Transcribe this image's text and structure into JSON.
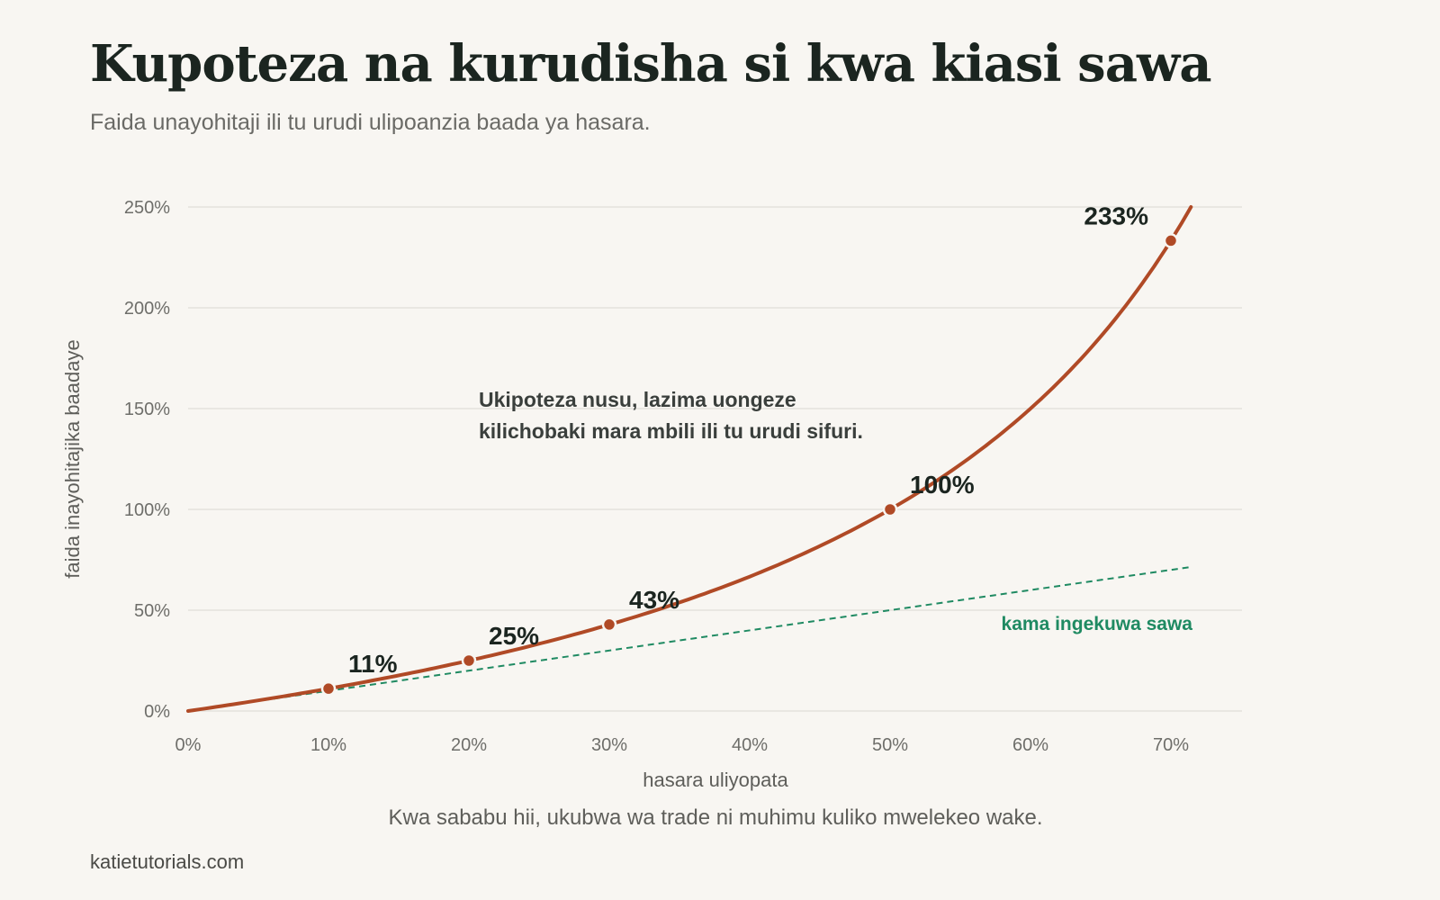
{
  "title": "Kupoteza na kurudisha si kwa kiasi sawa",
  "subtitle": "Faida unayohitaji ili tu urudi ulipoanzia baada ya hasara.",
  "footnote": "Kwa sababu hii, ukubwa wa trade ni muhimu kuliko mwelekeo wake.",
  "source": "katietutorials.com",
  "colors": {
    "curve": "#b04a26",
    "reference": "#1f8a62",
    "text": "#1b2520"
  },
  "chart_data": {
    "type": "line",
    "xlabel": "hasara uliyopata",
    "ylabel": "faida inayohitajika baadaye",
    "xlim": [
      0,
      0.73
    ],
    "ylim": [
      0,
      2.5
    ],
    "x_ticks": [
      0,
      0.1,
      0.2,
      0.3,
      0.4,
      0.5,
      0.6,
      0.7
    ],
    "x_tick_labels": [
      "0%",
      "10%",
      "20%",
      "30%",
      "40%",
      "50%",
      "60%",
      "70%"
    ],
    "y_ticks": [
      0,
      0.5,
      1.0,
      1.5,
      2.0,
      2.5
    ],
    "y_tick_labels": [
      "0%",
      "50%",
      "100%",
      "150%",
      "200%",
      "250%"
    ],
    "grid": true,
    "series": [
      {
        "name": "",
        "style": "solid",
        "formula": "loss / (1 - loss)",
        "x": [
          0,
          0.05,
          0.1,
          0.15,
          0.2,
          0.25,
          0.3,
          0.35,
          0.4,
          0.45,
          0.5,
          0.55,
          0.6,
          0.65,
          0.7,
          0.714
        ],
        "y": [
          0,
          0.053,
          0.111,
          0.176,
          0.25,
          0.333,
          0.429,
          0.538,
          0.667,
          0.818,
          1.0,
          1.222,
          1.5,
          1.857,
          2.333,
          2.5
        ]
      },
      {
        "name": "kama ingekuwa sawa",
        "style": "dashed",
        "x": [
          0,
          0.715
        ],
        "y": [
          0,
          0.715
        ]
      }
    ],
    "highlight_points": [
      {
        "x": 0.1,
        "y": 0.111,
        "label": "11%"
      },
      {
        "x": 0.2,
        "y": 0.25,
        "label": "25%"
      },
      {
        "x": 0.3,
        "y": 0.429,
        "label": "43%"
      },
      {
        "x": 0.5,
        "y": 1.0,
        "label": "100%"
      },
      {
        "x": 0.7,
        "y": 2.333,
        "label": "233%"
      }
    ],
    "annotation": [
      "Ukipoteza nusu, lazima uongeze",
      "kilichobaki mara mbili ili tu urudi sifuri."
    ],
    "reference_label": "kama ingekuwa sawa"
  }
}
